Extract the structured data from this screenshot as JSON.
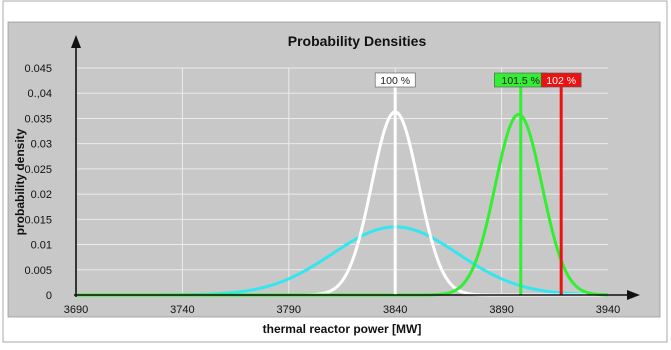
{
  "chart_data": {
    "type": "line",
    "title": "Probability Densities",
    "xlabel": "thermal reactor power [MW]",
    "ylabel": "probability density",
    "xlim": [
      3690,
      3940
    ],
    "ylim": [
      0,
      0.045
    ],
    "x_ticks": [
      3690,
      3740,
      3790,
      3840,
      3890,
      3940
    ],
    "y_ticks": [
      {
        "value": 0,
        "label": "0"
      },
      {
        "value": 0.005,
        "label": "0.005"
      },
      {
        "value": 0.01,
        "label": "0.01"
      },
      {
        "value": 0.015,
        "label": "0.015"
      },
      {
        "value": 0.02,
        "label": "0.02"
      },
      {
        "value": 0.025,
        "label": "0.025"
      },
      {
        "value": 0.03,
        "label": "0.03"
      },
      {
        "value": 0.035,
        "label": "0.035"
      },
      {
        "value": 0.04,
        "label": "0.,04"
      },
      {
        "value": 0.045,
        "label": "0.045"
      }
    ],
    "grid": true,
    "series": [
      {
        "mean": 3840,
        "std": 29.5,
        "peak": 0.0135,
        "color": "#33e6f0"
      },
      {
        "mean": 3840,
        "std": 11,
        "peak": 0.0363,
        "color": "#ffffff"
      },
      {
        "mean": 3898,
        "std": 11,
        "peak": 0.0358,
        "color": "#33ee33"
      }
    ],
    "markers": [
      {
        "x": 3840,
        "label": "100 %",
        "line_color": "#ffffff",
        "label_bg": "#ffffff",
        "label_fg": "#222222"
      },
      {
        "x": 3899,
        "label": "101.5 %",
        "line_color": "#33ee33",
        "label_bg": "#33ee33",
        "label_fg": "#222222"
      },
      {
        "x": 3918,
        "label": "102 %",
        "line_color": "#ee1111",
        "label_bg": "#ee1111",
        "label_fg": "#ffffff"
      }
    ],
    "colors": {
      "plot_background": "#c8c8c8",
      "axis": "#111111",
      "grid": "#ebebeb"
    }
  }
}
